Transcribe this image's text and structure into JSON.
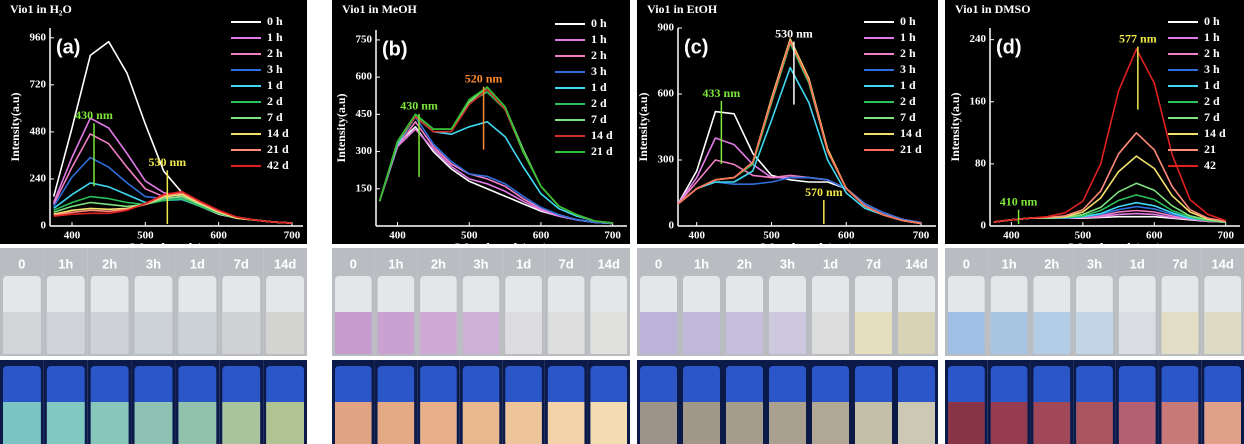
{
  "chart_data": [
    {
      "type": "line",
      "title": "Vio1 in H₂O",
      "panel_label": "(a)",
      "x_label": "Wavelength(nm)",
      "y_label": "Intensity(a.u)",
      "x": [
        375,
        400,
        425,
        450,
        475,
        500,
        525,
        550,
        575,
        600,
        625,
        650,
        675,
        700
      ],
      "xlim": [
        370,
        715
      ],
      "xticks": [
        400,
        500,
        600,
        700
      ],
      "ylim": [
        0,
        1010
      ],
      "yticks": [
        0,
        240,
        480,
        720,
        960
      ],
      "legend": "upper right",
      "series": [
        {
          "name": "0 h",
          "color": "#ffffff",
          "values": [
            150,
            500,
            870,
            940,
            780,
            520,
            280,
            170,
            100,
            60,
            40,
            30,
            20,
            15
          ]
        },
        {
          "name": "1 h",
          "color": "#e07ae6",
          "values": [
            120,
            350,
            550,
            500,
            370,
            230,
            170,
            150,
            110,
            70,
            45,
            30,
            20,
            15
          ]
        },
        {
          "name": "2 h",
          "color": "#f07fc6",
          "values": [
            110,
            300,
            470,
            420,
            300,
            190,
            150,
            140,
            100,
            65,
            40,
            30,
            20,
            15
          ]
        },
        {
          "name": "3 h",
          "color": "#2f6fdc",
          "values": [
            100,
            250,
            350,
            300,
            220,
            150,
            140,
            140,
            100,
            65,
            40,
            30,
            20,
            15
          ]
        },
        {
          "name": "1 d",
          "color": "#40d8f0",
          "values": [
            90,
            160,
            220,
            200,
            160,
            120,
            130,
            135,
            100,
            65,
            40,
            30,
            20,
            15
          ]
        },
        {
          "name": "2 d",
          "color": "#2bbf5a",
          "values": [
            80,
            120,
            150,
            140,
            120,
            110,
            130,
            140,
            100,
            65,
            40,
            30,
            20,
            15
          ]
        },
        {
          "name": "7 d",
          "color": "#7ee27e",
          "values": [
            70,
            100,
            120,
            110,
            100,
            110,
            140,
            150,
            110,
            70,
            40,
            30,
            20,
            15
          ]
        },
        {
          "name": "14 d",
          "color": "#f2e06a",
          "values": [
            60,
            80,
            90,
            85,
            90,
            110,
            150,
            160,
            115,
            70,
            40,
            30,
            20,
            15
          ]
        },
        {
          "name": "21 d",
          "color": "#ff8a7a",
          "values": [
            55,
            70,
            80,
            75,
            85,
            110,
            155,
            170,
            120,
            75,
            45,
            30,
            20,
            15
          ]
        },
        {
          "name": "42 d",
          "color": "#e02020",
          "values": [
            50,
            60,
            65,
            65,
            80,
            115,
            160,
            175,
            125,
            80,
            45,
            30,
            20,
            15
          ]
        }
      ],
      "annotations": [
        {
          "text": "430 nm",
          "x": 430,
          "y": 560,
          "color": "#7ee83a"
        },
        {
          "text": "530 nm",
          "x": 530,
          "y": 320,
          "color": "#f2e84a"
        }
      ]
    },
    {
      "type": "line",
      "title": "Vio1 in MeOH",
      "panel_label": "(b)",
      "x_label": "Wavelength(nm)",
      "y_label": "Intensity(a.u)",
      "x": [
        375,
        400,
        425,
        450,
        475,
        500,
        525,
        550,
        575,
        600,
        625,
        650,
        675,
        700
      ],
      "xlim": [
        370,
        720
      ],
      "xticks": [
        400,
        500,
        600,
        700
      ],
      "ylim": [
        0,
        790
      ],
      "yticks": [
        150,
        300,
        450,
        600,
        750
      ],
      "legend": "upper right",
      "series": [
        {
          "name": "0 h",
          "color": "#ffffff",
          "values": [
            100,
            330,
            400,
            300,
            230,
            180,
            150,
            120,
            90,
            60,
            40,
            25,
            15,
            10
          ]
        },
        {
          "name": "1 h",
          "color": "#e07ae6",
          "values": [
            100,
            320,
            390,
            310,
            240,
            190,
            170,
            140,
            100,
            65,
            40,
            25,
            15,
            10
          ]
        },
        {
          "name": "2 h",
          "color": "#f07fc6",
          "values": [
            100,
            320,
            420,
            320,
            250,
            210,
            190,
            160,
            110,
            70,
            45,
            25,
            15,
            10
          ]
        },
        {
          "name": "3 h",
          "color": "#2f6fdc",
          "values": [
            100,
            330,
            440,
            330,
            260,
            210,
            200,
            170,
            120,
            75,
            45,
            25,
            15,
            10
          ]
        },
        {
          "name": "1 d",
          "color": "#40d8f0",
          "values": [
            100,
            330,
            440,
            380,
            370,
            400,
            420,
            360,
            240,
            130,
            70,
            40,
            20,
            12
          ]
        },
        {
          "name": "2 d",
          "color": "#2bbf5a",
          "values": [
            100,
            340,
            450,
            390,
            390,
            500,
            540,
            470,
            300,
            160,
            80,
            45,
            20,
            12
          ]
        },
        {
          "name": "7 d",
          "color": "#7ee27e",
          "values": [
            100,
            340,
            450,
            390,
            390,
            500,
            560,
            480,
            310,
            160,
            80,
            45,
            20,
            12
          ]
        },
        {
          "name": "14 d",
          "color": "#d03030",
          "values": [
            100,
            340,
            440,
            380,
            380,
            490,
            550,
            470,
            300,
            160,
            80,
            45,
            20,
            12
          ]
        },
        {
          "name": "21 d",
          "color": "#30c030",
          "values": [
            100,
            340,
            450,
            390,
            390,
            510,
            560,
            480,
            300,
            160,
            80,
            45,
            20,
            12
          ]
        }
      ],
      "annotations": [
        {
          "text": "430 nm",
          "x": 430,
          "y": 480,
          "color": "#7ee83a"
        },
        {
          "text": "520 nm",
          "x": 520,
          "y": 590,
          "color": "#ff8a30"
        }
      ]
    },
    {
      "type": "line",
      "title": "Vio1 in EtOH",
      "panel_label": "(c)",
      "x_label": "Wavelength(nm)",
      "y_label": "Intensity(a.u)",
      "x": [
        375,
        400,
        425,
        450,
        475,
        500,
        525,
        550,
        575,
        600,
        625,
        650,
        675,
        700
      ],
      "xlim": [
        375,
        720
      ],
      "xticks": [
        400,
        500,
        600,
        700
      ],
      "ylim": [
        0,
        900
      ],
      "yticks": [
        0,
        300,
        600,
        900
      ],
      "legend": "upper right",
      "series": [
        {
          "name": "0 h",
          "color": "#ffffff",
          "values": [
            100,
            250,
            520,
            510,
            330,
            230,
            210,
            200,
            200,
            170,
            100,
            60,
            30,
            15
          ]
        },
        {
          "name": "1 h",
          "color": "#e07ae6",
          "values": [
            100,
            220,
            400,
            370,
            280,
            220,
            220,
            220,
            210,
            170,
            100,
            60,
            30,
            15
          ]
        },
        {
          "name": "2 h",
          "color": "#f07fc6",
          "values": [
            100,
            200,
            300,
            280,
            230,
            220,
            230,
            220,
            210,
            170,
            100,
            60,
            30,
            15
          ]
        },
        {
          "name": "3 h",
          "color": "#2f6fdc",
          "values": [
            100,
            170,
            200,
            190,
            190,
            200,
            220,
            220,
            210,
            170,
            100,
            60,
            30,
            15
          ]
        },
        {
          "name": "1 d",
          "color": "#40d8f0",
          "values": [
            100,
            170,
            200,
            200,
            250,
            480,
            720,
            560,
            300,
            150,
            80,
            50,
            25,
            12
          ]
        },
        {
          "name": "2 d",
          "color": "#2bbf5a",
          "values": [
            100,
            170,
            210,
            220,
            280,
            560,
            830,
            650,
            340,
            170,
            90,
            50,
            25,
            12
          ]
        },
        {
          "name": "7 d",
          "color": "#7ee27e",
          "values": [
            100,
            170,
            210,
            220,
            290,
            570,
            840,
            660,
            340,
            170,
            90,
            50,
            25,
            12
          ]
        },
        {
          "name": "14 d",
          "color": "#f2e06a",
          "values": [
            100,
            170,
            210,
            220,
            290,
            580,
            850,
            670,
            350,
            170,
            90,
            50,
            25,
            12
          ]
        },
        {
          "name": "21 d",
          "color": "#ff6a5a",
          "values": [
            100,
            170,
            210,
            220,
            290,
            570,
            840,
            660,
            340,
            170,
            90,
            50,
            25,
            12
          ]
        }
      ],
      "annotations": [
        {
          "text": "433 nm",
          "x": 433,
          "y": 600,
          "color": "#7ee83a"
        },
        {
          "text": "530 nm",
          "x": 530,
          "y": 870,
          "color": "#ffffff"
        },
        {
          "text": "570 nm",
          "x": 570,
          "y": 150,
          "color": "#f2e84a"
        }
      ]
    },
    {
      "type": "line",
      "title": "Vio1 in DMSO",
      "panel_label": "(d)",
      "x_label": "Wavelength(nm)",
      "y_label": "Intensity(a.u)",
      "x": [
        375,
        400,
        425,
        450,
        475,
        500,
        525,
        550,
        575,
        600,
        625,
        650,
        675,
        700
      ],
      "xlim": [
        370,
        720
      ],
      "xticks": [
        400,
        500,
        600,
        700
      ],
      "ylim": [
        0,
        255
      ],
      "yticks": [
        0,
        80,
        160,
        240
      ],
      "legend": "upper right",
      "series": [
        {
          "name": "0 h",
          "color": "#ffffff",
          "values": [
            5,
            8,
            10,
            10,
            10,
            10,
            11,
            12,
            12,
            12,
            10,
            8,
            6,
            5
          ]
        },
        {
          "name": "1 h",
          "color": "#e07ae6",
          "values": [
            5,
            8,
            10,
            10,
            10,
            11,
            12,
            15,
            16,
            15,
            11,
            9,
            6,
            5
          ]
        },
        {
          "name": "2 h",
          "color": "#f07fc6",
          "values": [
            5,
            8,
            10,
            10,
            10,
            11,
            13,
            18,
            20,
            18,
            13,
            9,
            6,
            5
          ]
        },
        {
          "name": "3 h",
          "color": "#2f6fdc",
          "values": [
            5,
            8,
            10,
            10,
            10,
            12,
            15,
            21,
            25,
            22,
            15,
            10,
            7,
            5
          ]
        },
        {
          "name": "1 d",
          "color": "#40d8f0",
          "values": [
            5,
            8,
            10,
            10,
            11,
            12,
            16,
            25,
            30,
            26,
            17,
            10,
            7,
            5
          ]
        },
        {
          "name": "2 d",
          "color": "#2bbf5a",
          "values": [
            5,
            8,
            10,
            10,
            11,
            13,
            20,
            33,
            40,
            34,
            20,
            12,
            7,
            5
          ]
        },
        {
          "name": "7 d",
          "color": "#7ee27e",
          "values": [
            5,
            8,
            10,
            10,
            11,
            15,
            24,
            44,
            55,
            46,
            26,
            13,
            8,
            5
          ]
        },
        {
          "name": "14 d",
          "color": "#f2e06a",
          "values": [
            5,
            8,
            10,
            11,
            12,
            18,
            36,
            70,
            90,
            74,
            39,
            18,
            9,
            6
          ]
        },
        {
          "name": "21",
          "color": "#ff8a7a",
          "values": [
            5,
            8,
            10,
            11,
            13,
            21,
            45,
            93,
            120,
            98,
            51,
            21,
            10,
            6
          ]
        },
        {
          "name": "42",
          "color": "#e02020",
          "values": [
            5,
            8,
            10,
            12,
            17,
            32,
            80,
            174,
            228,
            184,
            92,
            34,
            15,
            7
          ]
        }
      ],
      "annotations": [
        {
          "text": "410 nm",
          "x": 410,
          "y": 30,
          "color": "#7ee83a"
        },
        {
          "text": "577 nm",
          "x": 577,
          "y": 240,
          "color": "#f2e84a"
        }
      ]
    }
  ],
  "photos": [
    {
      "labels": [
        "0",
        "1h",
        "2h",
        "3h",
        "1d",
        "7d",
        "14d"
      ]
    },
    {
      "labels": [
        "0",
        "1h",
        "2h",
        "3h",
        "1d",
        "7d",
        "14d"
      ]
    },
    {
      "labels": [
        "0",
        "1h",
        "2h",
        "3h",
        "1d",
        "7d",
        "14d"
      ]
    },
    {
      "labels": [
        "0",
        "1h",
        "2h",
        "3h",
        "1d",
        "7d",
        "14d"
      ]
    }
  ]
}
